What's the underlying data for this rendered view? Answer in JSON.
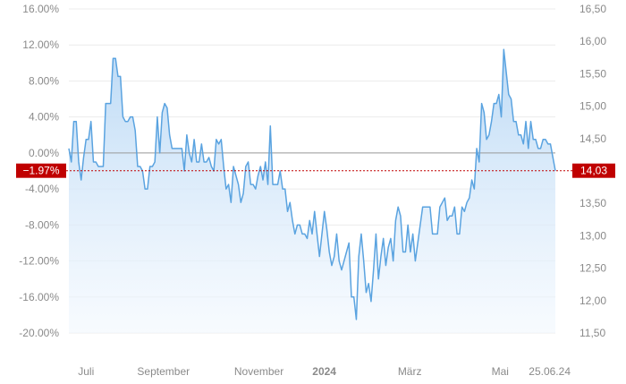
{
  "chart_data": {
    "type": "area",
    "title": "",
    "left_axis": {
      "ticks": [
        16,
        12,
        8,
        4,
        0,
        -4,
        -8,
        -12,
        -16,
        -20
      ],
      "labels": [
        "16.00%",
        "12.00%",
        "8.00%",
        "4.00%",
        "0.00%",
        "-4.00%",
        "-8.00%",
        "-12.00%",
        "-16.00%",
        "-20.00%"
      ],
      "range": [
        -20,
        16
      ]
    },
    "right_axis": {
      "ticks": [
        16.5,
        16,
        15.5,
        15,
        14.5,
        14,
        13.5,
        13,
        12.5,
        12,
        11.5
      ],
      "labels": [
        "16,50",
        "16,00",
        "15,50",
        "15,00",
        "14,50",
        "14,00",
        "13,50",
        "13,00",
        "12,50",
        "12,00",
        "11,50"
      ],
      "range": [
        11.5,
        16.5
      ]
    },
    "x_axis": {
      "labels": [
        "Juli",
        "September",
        "November",
        "2024",
        "März",
        "Mai",
        "25.06.24"
      ],
      "bold": [
        false,
        false,
        false,
        true,
        false,
        false,
        false
      ],
      "positions": [
        0.02,
        0.19,
        0.38,
        0.51,
        0.68,
        0.86,
        1.0
      ]
    },
    "baseline_value": 0,
    "current": {
      "percent": -1.97,
      "percent_label": "−1.97%",
      "price_label": "14,03",
      "badge_color": "#c00000"
    },
    "colors": {
      "line": "#5aa3e0",
      "fill_top": "#b9d8f5",
      "fill_bottom": "#f2f8fe",
      "grid": "#ececec",
      "baseline": "#9a9a9a"
    },
    "series": [
      {
        "values": [
          0.5,
          -1.0,
          3.5,
          3.5,
          -1.0,
          -3.0,
          -0.5,
          1.5,
          1.5,
          3.5,
          -1.0,
          -1.0,
          -1.5,
          -1.5,
          -1.5,
          5.5,
          5.5,
          5.5,
          10.5,
          10.5,
          8.5,
          8.5,
          4.0,
          3.5,
          3.5,
          4.0,
          4.0,
          2.5,
          -1.5,
          -1.5,
          -2.0,
          -4.0,
          -4.0,
          -1.5,
          -1.5,
          -1.0,
          4.0,
          0.0,
          4.5,
          5.5,
          5.0,
          2.0,
          0.5,
          0.5,
          0.5,
          0.5,
          0.5,
          -2.0,
          2.0,
          0.0,
          -1.0,
          1.5,
          -1.0,
          -1.0,
          1.0,
          -1.0,
          -1.0,
          -0.5,
          -1.5,
          -2.0,
          1.5,
          1.0,
          1.5,
          -1.5,
          -4.0,
          -3.5,
          -5.5,
          -1.5,
          -2.5,
          -3.5,
          -5.5,
          -4.5,
          -1.5,
          -1.0,
          -3.5,
          -3.5,
          -4.0,
          -2.5,
          -1.5,
          -3.0,
          -1.0,
          -3.5,
          3.0,
          -3.5,
          -3.5,
          -3.5,
          -2.0,
          -4.0,
          -4.0,
          -6.5,
          -5.5,
          -7.5,
          -9.0,
          -8.0,
          -8.0,
          -9.0,
          -9.0,
          -9.5,
          -7.5,
          -9.0,
          -6.5,
          -9.0,
          -11.5,
          -9.0,
          -6.5,
          -8.5,
          -11.0,
          -12.5,
          -11.5,
          -9.0,
          -12.0,
          -13.0,
          -12.0,
          -11.0,
          -10.0,
          -16.0,
          -16.0,
          -18.5,
          -11.5,
          -9.0,
          -12.0,
          -15.5,
          -14.5,
          -16.5,
          -13.0,
          -9.0,
          -14.0,
          -11.5,
          -9.5,
          -12.5,
          -10.5,
          -9.5,
          -12.0,
          -7.5,
          -6.0,
          -7.0,
          -11.0,
          -11.0,
          -8.0,
          -11.0,
          -9.0,
          -12.0,
          -10.0,
          -8.0,
          -6.0,
          -6.0,
          -6.0,
          -6.0,
          -9.0,
          -9.0,
          -9.0,
          -6.0,
          -5.5,
          -5.0,
          -7.5,
          -7.0,
          -7.0,
          -6.0,
          -9.0,
          -9.0,
          -6.0,
          -6.5,
          -5.5,
          -5.0,
          -3.0,
          -4.0,
          0.5,
          -1.0,
          5.5,
          4.5,
          1.5,
          2.0,
          3.5,
          5.5,
          5.5,
          6.5,
          4.0,
          11.5,
          9.0,
          6.5,
          6.0,
          3.5,
          3.5,
          2.0,
          2.0,
          1.0,
          3.5,
          0.5,
          3.5,
          1.5,
          1.5,
          0.5,
          0.5,
          1.5,
          1.5,
          1.0,
          1.0,
          -0.5,
          -1.97
        ]
      }
    ]
  }
}
